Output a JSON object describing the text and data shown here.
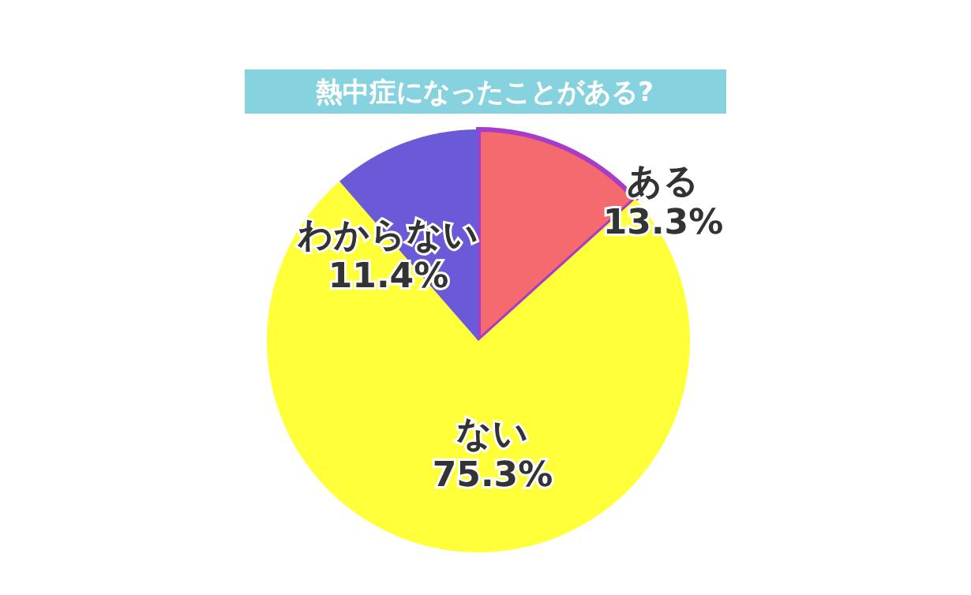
{
  "chart_data": {
    "type": "pie",
    "title": "熱中症になったことがある?",
    "categories": [
      "ある",
      "ない",
      "わからない"
    ],
    "values": [
      13.3,
      75.3,
      11.4
    ],
    "value_labels": [
      "13.3%",
      "75.3%",
      "11.4%"
    ],
    "colors": [
      "#f46a6e",
      "#ffff3a",
      "#6a5ad8"
    ]
  }
}
